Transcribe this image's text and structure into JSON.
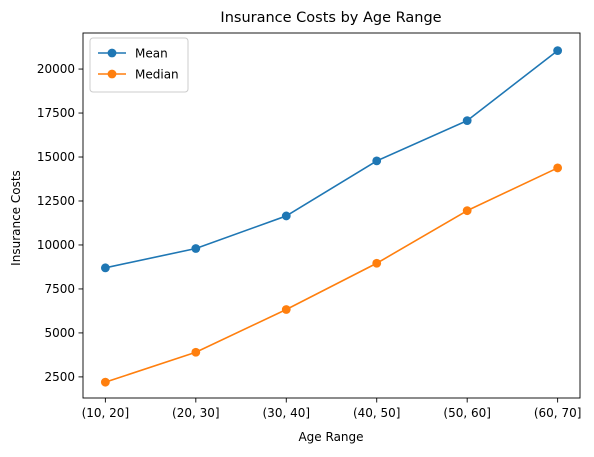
{
  "chart_data": {
    "type": "line",
    "title": "Insurance Costs by Age Range",
    "xlabel": "Age Range",
    "ylabel": "Insurance Costs",
    "categories": [
      "(10, 20]",
      "(20, 30]",
      "(30, 40]",
      "(40, 50]",
      "(50, 60]",
      "(60, 70]"
    ],
    "series": [
      {
        "name": "Mean",
        "color": "#1f77b4",
        "values": [
          8700,
          9800,
          11650,
          14780,
          17070,
          21050
        ]
      },
      {
        "name": "Median",
        "color": "#ff7f0e",
        "values": [
          2200,
          3900,
          6330,
          8960,
          11950,
          14380
        ]
      }
    ],
    "ylim": [
      1300,
      22050
    ],
    "yticks": [
      2500,
      5000,
      7500,
      10000,
      12500,
      15000,
      17500,
      20000
    ],
    "grid": false,
    "legend_position": "upper-left"
  }
}
